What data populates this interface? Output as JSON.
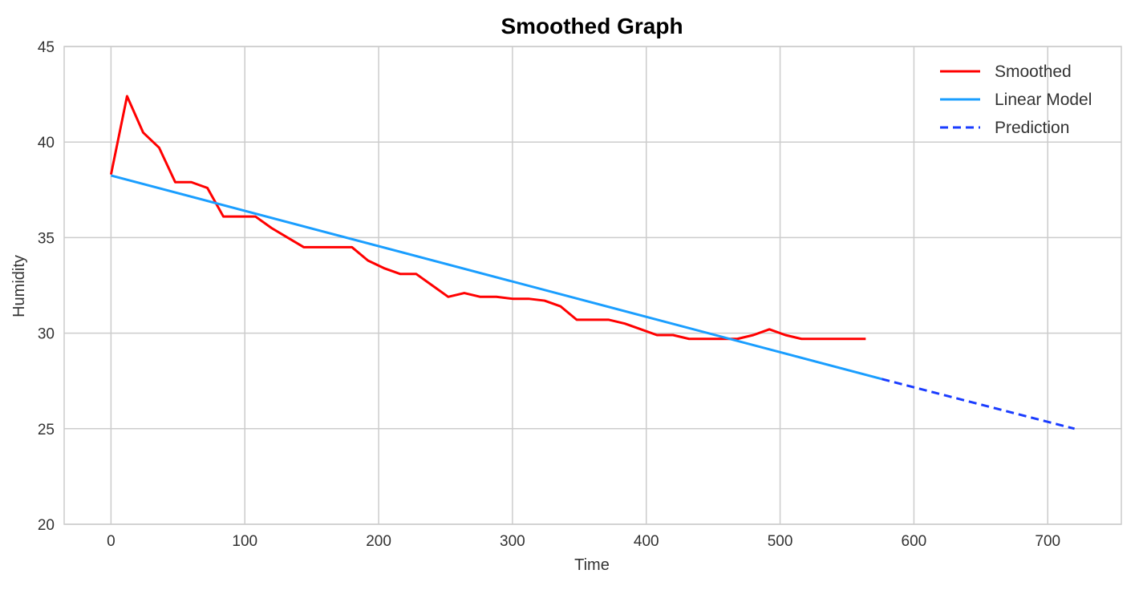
{
  "chart_data": {
    "type": "line",
    "title": "Smoothed Graph",
    "xlabel": "Time",
    "ylabel": "Humidity",
    "xlim": [
      -35,
      755
    ],
    "ylim": [
      20,
      45
    ],
    "x_ticks": [
      0,
      100,
      200,
      300,
      400,
      500,
      600,
      700
    ],
    "y_ticks": [
      20,
      25,
      30,
      35,
      40,
      45
    ],
    "grid": true,
    "legend_position": "top-right",
    "series": [
      {
        "name": "Smoothed",
        "color": "#ff0000",
        "style": "solid",
        "x": [
          0,
          12,
          24,
          36,
          48,
          60,
          72,
          84,
          96,
          108,
          120,
          132,
          144,
          156,
          168,
          180,
          192,
          204,
          216,
          228,
          240,
          252,
          264,
          276,
          288,
          300,
          312,
          324,
          336,
          348,
          360,
          372,
          384,
          396,
          408,
          420,
          432,
          444,
          456,
          468,
          480,
          492,
          504,
          516,
          528,
          540,
          552,
          564
        ],
        "y": [
          38.3,
          42.4,
          40.5,
          39.7,
          37.9,
          37.9,
          37.6,
          36.1,
          36.1,
          36.1,
          35.5,
          35.0,
          34.5,
          34.5,
          34.5,
          34.5,
          33.8,
          33.4,
          33.1,
          33.1,
          32.5,
          31.9,
          32.1,
          31.9,
          31.9,
          31.8,
          31.8,
          31.7,
          31.4,
          30.7,
          30.7,
          30.7,
          30.5,
          30.2,
          29.9,
          29.9,
          29.7,
          29.7,
          29.7,
          29.7,
          29.9,
          30.2,
          29.9,
          29.7,
          29.7,
          29.7,
          29.7,
          29.7
        ]
      },
      {
        "name": "Linear Model",
        "color": "#1a9eff",
        "style": "solid",
        "x": [
          0,
          576
        ],
        "y": [
          38.25,
          27.6
        ]
      },
      {
        "name": "Prediction",
        "color": "#1a3cff",
        "style": "dashed",
        "x": [
          576,
          720
        ],
        "y": [
          27.6,
          25.0
        ]
      }
    ]
  }
}
